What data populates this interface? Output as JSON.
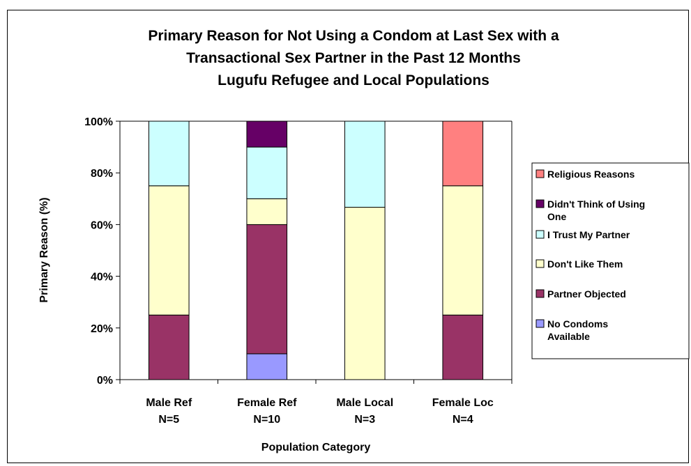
{
  "chart_data": {
    "type": "bar",
    "stacked": true,
    "title": [
      "Primary Reason for Not Using a Condom at Last Sex with a",
      "Transactional Sex Partner in the Past 12 Months",
      "Lugufu Refugee and Local Populations"
    ],
    "xlabel": "Population Category",
    "ylabel": "Primary Reason (%)",
    "ylim": [
      0,
      100
    ],
    "yticks": [
      "0%",
      "20%",
      "40%",
      "60%",
      "80%",
      "100%"
    ],
    "categories": [
      [
        "Male Ref",
        "N=5"
      ],
      [
        "Female Ref",
        "N=10"
      ],
      [
        "Male Local",
        "N=3"
      ],
      [
        "Female Loc",
        "N=4"
      ]
    ],
    "series": [
      {
        "name": "No Condoms Available",
        "color": "#9999ff",
        "values": [
          0,
          10,
          0,
          0
        ]
      },
      {
        "name": "Partner Objected",
        "color": "#993366",
        "values": [
          25,
          50,
          0,
          25
        ]
      },
      {
        "name": "Don't Like Them",
        "color": "#ffffcc",
        "values": [
          50,
          10,
          66.7,
          50
        ]
      },
      {
        "name": "I Trust My Partner",
        "color": "#ccffff",
        "values": [
          25,
          20,
          33.3,
          0
        ]
      },
      {
        "name": "Didn't Think of Using One",
        "color": "#660066",
        "values": [
          0,
          10,
          0,
          0
        ]
      },
      {
        "name": "Religious Reasons",
        "color": "#ff8080",
        "values": [
          0,
          0,
          0,
          25
        ]
      }
    ],
    "legend_position": "right",
    "legend_order": [
      "Religious Reasons",
      "Didn't Think of Using One",
      "I Trust My Partner",
      "Don't Like Them",
      "Partner Objected",
      "No Condoms Available"
    ],
    "legend_lines": [
      [
        "Religious Reasons"
      ],
      [
        "Didn't Think of Using",
        "One"
      ],
      [
        "I Trust My Partner"
      ],
      [
        "Don't Like Them"
      ],
      [
        "Partner Objected"
      ],
      [
        "No Condoms",
        "Available"
      ]
    ],
    "grid": false
  }
}
